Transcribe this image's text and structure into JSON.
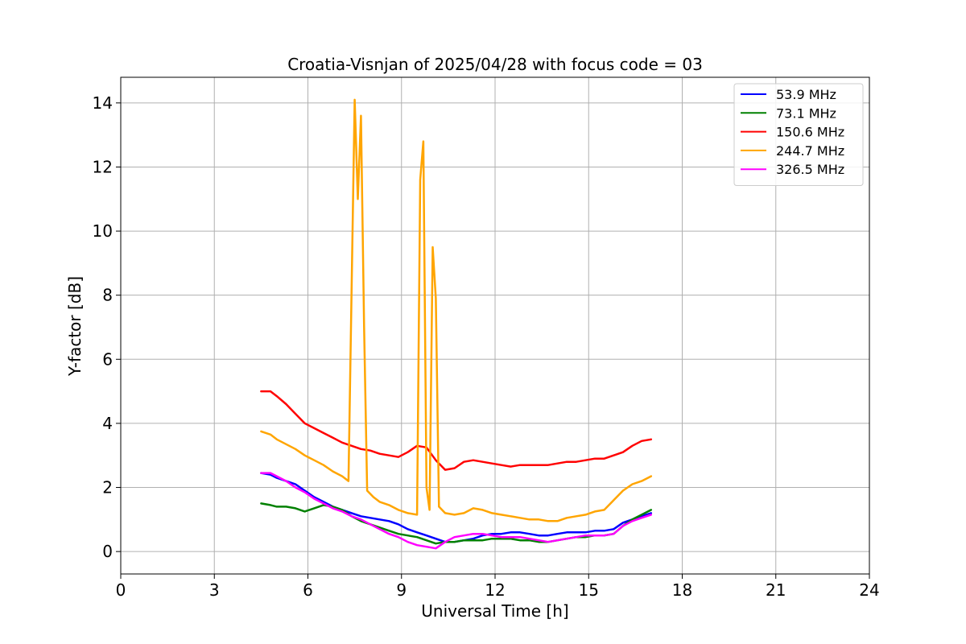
{
  "chart_data": {
    "type": "line",
    "title": "Croatia-Visnjan of 2025/04/28 with focus code = 03",
    "xlabel": "Universal Time [h]",
    "ylabel": "Y-factor [dB]",
    "xlim": [
      0,
      24
    ],
    "ylim": [
      -0.7,
      14.8
    ],
    "xticks": [
      0,
      3,
      6,
      9,
      12,
      15,
      18,
      21,
      24
    ],
    "yticks": [
      0,
      2,
      4,
      6,
      8,
      10,
      12,
      14
    ],
    "grid": true,
    "legend_position": "top-right",
    "series": [
      {
        "name": " 53.9 MHz",
        "color": "#0000ff",
        "x": [
          4.5,
          4.8,
          5.0,
          5.3,
          5.6,
          5.9,
          6.2,
          6.5,
          6.8,
          7.1,
          7.4,
          7.7,
          8.0,
          8.3,
          8.6,
          8.9,
          9.2,
          9.5,
          9.8,
          10.1,
          10.4,
          10.7,
          11.0,
          11.3,
          11.6,
          11.9,
          12.2,
          12.5,
          12.8,
          13.1,
          13.4,
          13.7,
          14.0,
          14.3,
          14.6,
          14.9,
          15.2,
          15.5,
          15.8,
          16.1,
          16.4,
          16.7,
          17.0
        ],
        "y": [
          2.45,
          2.4,
          2.3,
          2.2,
          2.1,
          1.9,
          1.7,
          1.55,
          1.4,
          1.3,
          1.2,
          1.1,
          1.05,
          1.0,
          0.95,
          0.85,
          0.7,
          0.6,
          0.5,
          0.4,
          0.3,
          0.3,
          0.35,
          0.4,
          0.5,
          0.55,
          0.55,
          0.6,
          0.6,
          0.55,
          0.5,
          0.5,
          0.55,
          0.6,
          0.6,
          0.6,
          0.65,
          0.65,
          0.7,
          0.9,
          1.0,
          1.1,
          1.2
        ]
      },
      {
        "name": " 73.1 MHz",
        "color": "#008000",
        "x": [
          4.5,
          4.8,
          5.0,
          5.3,
          5.6,
          5.9,
          6.2,
          6.5,
          6.8,
          7.1,
          7.4,
          7.7,
          8.0,
          8.3,
          8.6,
          8.9,
          9.2,
          9.5,
          9.8,
          10.1,
          10.4,
          10.7,
          11.0,
          11.3,
          11.6,
          11.9,
          12.2,
          12.5,
          12.8,
          13.1,
          13.4,
          13.7,
          14.0,
          14.3,
          14.6,
          14.9,
          15.2,
          15.5,
          15.8,
          16.1,
          16.4,
          16.7,
          17.0
        ],
        "y": [
          1.5,
          1.45,
          1.4,
          1.4,
          1.35,
          1.25,
          1.35,
          1.45,
          1.4,
          1.3,
          1.1,
          0.95,
          0.85,
          0.75,
          0.65,
          0.55,
          0.5,
          0.45,
          0.35,
          0.25,
          0.3,
          0.3,
          0.35,
          0.35,
          0.35,
          0.4,
          0.4,
          0.4,
          0.35,
          0.35,
          0.3,
          0.3,
          0.35,
          0.4,
          0.45,
          0.45,
          0.5,
          0.5,
          0.55,
          0.8,
          1.0,
          1.15,
          1.3
        ]
      },
      {
        "name": " 150.6 MHz",
        "color": "#ff0000",
        "x": [
          4.5,
          4.8,
          5.0,
          5.3,
          5.6,
          5.9,
          6.2,
          6.5,
          6.8,
          7.1,
          7.4,
          7.7,
          8.0,
          8.3,
          8.6,
          8.9,
          9.2,
          9.5,
          9.8,
          10.1,
          10.4,
          10.7,
          11.0,
          11.3,
          11.6,
          11.9,
          12.2,
          12.5,
          12.8,
          13.1,
          13.4,
          13.7,
          14.0,
          14.3,
          14.6,
          14.9,
          15.2,
          15.5,
          15.8,
          16.1,
          16.4,
          16.7,
          17.0
        ],
        "y": [
          5.0,
          5.0,
          4.85,
          4.6,
          4.3,
          4.0,
          3.85,
          3.7,
          3.55,
          3.4,
          3.3,
          3.2,
          3.15,
          3.05,
          3.0,
          2.95,
          3.1,
          3.3,
          3.25,
          2.85,
          2.55,
          2.6,
          2.8,
          2.85,
          2.8,
          2.75,
          2.7,
          2.65,
          2.7,
          2.7,
          2.7,
          2.7,
          2.75,
          2.8,
          2.8,
          2.85,
          2.9,
          2.9,
          3.0,
          3.1,
          3.3,
          3.45,
          3.5
        ]
      },
      {
        "name": " 244.7 MHz",
        "color": "#ffa500",
        "x": [
          4.5,
          4.8,
          5.0,
          5.3,
          5.6,
          5.9,
          6.2,
          6.5,
          6.8,
          7.1,
          7.3,
          7.5,
          7.6,
          7.7,
          7.8,
          7.9,
          8.1,
          8.3,
          8.6,
          8.9,
          9.2,
          9.5,
          9.6,
          9.7,
          9.8,
          9.9,
          10.0,
          10.1,
          10.2,
          10.4,
          10.7,
          11.0,
          11.3,
          11.6,
          11.9,
          12.2,
          12.5,
          12.8,
          13.1,
          13.4,
          13.7,
          14.0,
          14.3,
          14.6,
          14.9,
          15.2,
          15.5,
          15.8,
          16.1,
          16.4,
          16.7,
          17.0
        ],
        "y": [
          3.75,
          3.65,
          3.5,
          3.35,
          3.2,
          3.0,
          2.85,
          2.7,
          2.5,
          2.35,
          2.2,
          14.1,
          11.0,
          13.6,
          7.0,
          1.9,
          1.7,
          1.55,
          1.45,
          1.3,
          1.2,
          1.15,
          11.6,
          12.8,
          2.0,
          1.3,
          9.5,
          7.9,
          1.4,
          1.2,
          1.15,
          1.2,
          1.35,
          1.3,
          1.2,
          1.15,
          1.1,
          1.05,
          1.0,
          1.0,
          0.95,
          0.95,
          1.05,
          1.1,
          1.15,
          1.25,
          1.3,
          1.6,
          1.9,
          2.1,
          2.2,
          2.35
        ]
      },
      {
        "name": " 326.5 MHz",
        "color": "#ff00ff",
        "x": [
          4.5,
          4.8,
          5.0,
          5.3,
          5.6,
          5.9,
          6.2,
          6.5,
          6.8,
          7.1,
          7.4,
          7.7,
          8.0,
          8.3,
          8.6,
          8.9,
          9.2,
          9.5,
          9.8,
          10.1,
          10.4,
          10.7,
          11.0,
          11.3,
          11.6,
          11.9,
          12.2,
          12.5,
          12.8,
          13.1,
          13.4,
          13.7,
          14.0,
          14.3,
          14.6,
          14.9,
          15.2,
          15.5,
          15.8,
          16.1,
          16.4,
          16.7,
          17.0
        ],
        "y": [
          2.45,
          2.45,
          2.35,
          2.2,
          2.0,
          1.85,
          1.65,
          1.5,
          1.35,
          1.25,
          1.1,
          1.0,
          0.85,
          0.7,
          0.55,
          0.45,
          0.3,
          0.2,
          0.15,
          0.1,
          0.3,
          0.45,
          0.5,
          0.55,
          0.55,
          0.5,
          0.45,
          0.45,
          0.45,
          0.4,
          0.35,
          0.3,
          0.35,
          0.4,
          0.45,
          0.5,
          0.5,
          0.5,
          0.55,
          0.8,
          0.95,
          1.05,
          1.15
        ]
      }
    ]
  }
}
